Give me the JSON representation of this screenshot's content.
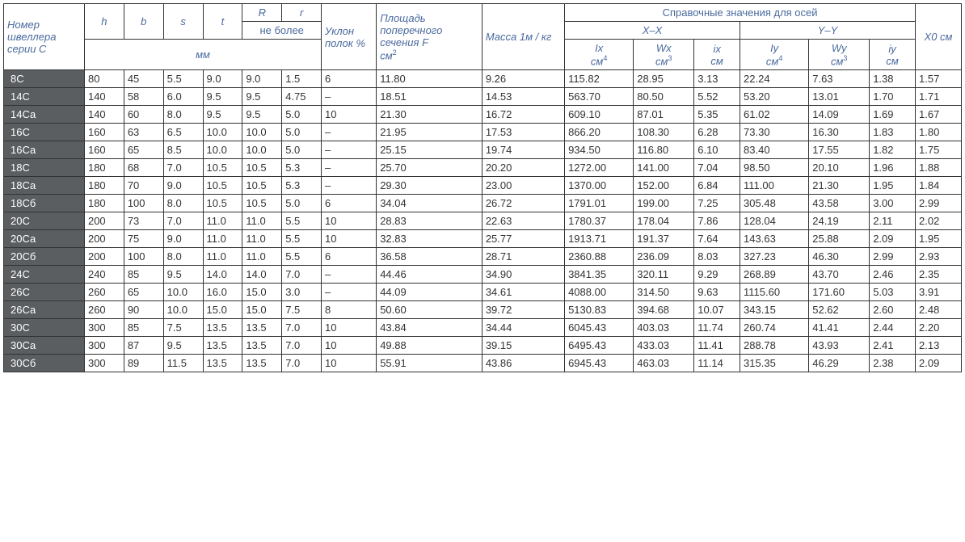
{
  "headers": {
    "col0": "Номер швеллера серии С",
    "h": "h",
    "b": "b",
    "s": "s",
    "t": "t",
    "R": "R",
    "r": "r",
    "not_more": "не более",
    "mm": "мм",
    "slope": "Уклон полок %",
    "area_l1": "Площадь поперечного сечения F",
    "area_unit": "см",
    "area_sup": "2",
    "mass": "Масса 1м / кг",
    "ref_title": "Справочные значения для осей",
    "xx": "X–X",
    "yy": "Y–Y",
    "x0": "X0 см",
    "Ix": "Ix",
    "Ix_u": "см",
    "Ix_s": "4",
    "Wx": "Wx",
    "Wx_u": "см",
    "Wx_s": "3",
    "ix": "ix",
    "ix_u": "см",
    "Iy": "Iy",
    "Iy_u": "см",
    "Iy_s": "4",
    "Wy": "Wy",
    "Wy_u": "см",
    "Wy_s": "3",
    "iy": "iy",
    "iy_u": "см"
  },
  "rows": [
    {
      "n": "8С",
      "h": "80",
      "b": "45",
      "s": "5.5",
      "t": "9.0",
      "R": "9.0",
      "r": "1.5",
      "slope": "6",
      "F": "11.80",
      "m": "9.26",
      "Ix": "115.82",
      "Wx": "28.95",
      "ix": "3.13",
      "Iy": "22.24",
      "Wy": "7.63",
      "iy": "1.38",
      "x0": "1.57"
    },
    {
      "n": "14С",
      "h": "140",
      "b": "58",
      "s": "6.0",
      "t": "9.5",
      "R": "9.5",
      "r": "4.75",
      "slope": "–",
      "F": "18.51",
      "m": "14.53",
      "Ix": "563.70",
      "Wx": "80.50",
      "ix": "5.52",
      "Iy": "53.20",
      "Wy": "13.01",
      "iy": "1.70",
      "x0": "1.71"
    },
    {
      "n": "14Са",
      "h": "140",
      "b": "60",
      "s": "8.0",
      "t": "9.5",
      "R": "9.5",
      "r": "5.0",
      "slope": "10",
      "F": "21.30",
      "m": "16.72",
      "Ix": "609.10",
      "Wx": "87.01",
      "ix": "5.35",
      "Iy": "61.02",
      "Wy": "14.09",
      "iy": "1.69",
      "x0": "1.67"
    },
    {
      "n": "16С",
      "h": "160",
      "b": "63",
      "s": "6.5",
      "t": "10.0",
      "R": "10.0",
      "r": "5.0",
      "slope": "–",
      "F": "21.95",
      "m": "17.53",
      "Ix": "866.20",
      "Wx": "108.30",
      "ix": "6.28",
      "Iy": "73.30",
      "Wy": "16.30",
      "iy": "1.83",
      "x0": "1.80"
    },
    {
      "n": "16Са",
      "h": "160",
      "b": "65",
      "s": "8.5",
      "t": "10.0",
      "R": "10.0",
      "r": "5.0",
      "slope": "–",
      "F": "25.15",
      "m": "19.74",
      "Ix": "934.50",
      "Wx": "116.80",
      "ix": "6.10",
      "Iy": "83.40",
      "Wy": "17.55",
      "iy": "1.82",
      "x0": "1.75"
    },
    {
      "n": "18С",
      "h": "180",
      "b": "68",
      "s": "7.0",
      "t": "10.5",
      "R": "10.5",
      "r": "5.3",
      "slope": "–",
      "F": "25.70",
      "m": "20.20",
      "Ix": "1272.00",
      "Wx": "141.00",
      "ix": "7.04",
      "Iy": "98.50",
      "Wy": "20.10",
      "iy": "1.96",
      "x0": "1.88"
    },
    {
      "n": "18Са",
      "h": "180",
      "b": "70",
      "s": "9.0",
      "t": "10.5",
      "R": "10.5",
      "r": "5.3",
      "slope": "–",
      "F": "29.30",
      "m": "23.00",
      "Ix": "1370.00",
      "Wx": "152.00",
      "ix": "6.84",
      "Iy": "111.00",
      "Wy": "21.30",
      "iy": "1.95",
      "x0": "1.84"
    },
    {
      "n": "18Сб",
      "h": "180",
      "b": "100",
      "s": "8.0",
      "t": "10.5",
      "R": "10.5",
      "r": "5.0",
      "slope": "6",
      "F": "34.04",
      "m": "26.72",
      "Ix": "1791.01",
      "Wx": "199.00",
      "ix": "7.25",
      "Iy": "305.48",
      "Wy": "43.58",
      "iy": "3.00",
      "x0": "2.99"
    },
    {
      "n": "20С",
      "h": "200",
      "b": "73",
      "s": "7.0",
      "t": "11.0",
      "R": "11.0",
      "r": "5.5",
      "slope": "10",
      "F": "28.83",
      "m": "22.63",
      "Ix": "1780.37",
      "Wx": "178.04",
      "ix": "7.86",
      "Iy": "128.04",
      "Wy": "24.19",
      "iy": "2.11",
      "x0": "2.02"
    },
    {
      "n": "20Са",
      "h": "200",
      "b": "75",
      "s": "9.0",
      "t": "11.0",
      "R": "11.0",
      "r": "5.5",
      "slope": "10",
      "F": "32.83",
      "m": "25.77",
      "Ix": "1913.71",
      "Wx": "191.37",
      "ix": "7.64",
      "Iy": "143.63",
      "Wy": "25.88",
      "iy": "2.09",
      "x0": "1.95"
    },
    {
      "n": "20Сб",
      "h": "200",
      "b": "100",
      "s": "8.0",
      "t": "11.0",
      "R": "11.0",
      "r": "5.5",
      "slope": "6",
      "F": "36.58",
      "m": "28.71",
      "Ix": "2360.88",
      "Wx": "236.09",
      "ix": "8.03",
      "Iy": "327.23",
      "Wy": "46.30",
      "iy": "2.99",
      "x0": "2.93"
    },
    {
      "n": "24С",
      "h": "240",
      "b": "85",
      "s": "9.5",
      "t": "14.0",
      "R": "14.0",
      "r": "7.0",
      "slope": "–",
      "F": "44.46",
      "m": "34.90",
      "Ix": "3841.35",
      "Wx": "320.11",
      "ix": "9.29",
      "Iy": "268.89",
      "Wy": "43.70",
      "iy": "2.46",
      "x0": "2.35"
    },
    {
      "n": "26С",
      "h": "260",
      "b": "65",
      "s": "10.0",
      "t": "16.0",
      "R": "15.0",
      "r": "3.0",
      "slope": "–",
      "F": "44.09",
      "m": "34.61",
      "Ix": "4088.00",
      "Wx": "314.50",
      "ix": "9.63",
      "Iy": "1115.60",
      "Wy": "171.60",
      "iy": "5.03",
      "x0": "3.91"
    },
    {
      "n": "26Са",
      "h": "260",
      "b": "90",
      "s": "10.0",
      "t": "15.0",
      "R": "15.0",
      "r": "7.5",
      "slope": "8",
      "F": "50.60",
      "m": "39.72",
      "Ix": "5130.83",
      "Wx": "394.68",
      "ix": "10.07",
      "Iy": "343.15",
      "Wy": "52.62",
      "iy": "2.60",
      "x0": "2.48"
    },
    {
      "n": "30С",
      "h": "300",
      "b": "85",
      "s": "7.5",
      "t": "13.5",
      "R": "13.5",
      "r": "7.0",
      "slope": "10",
      "F": "43.84",
      "m": "34.44",
      "Ix": "6045.43",
      "Wx": "403.03",
      "ix": "11.74",
      "Iy": "260.74",
      "Wy": "41.41",
      "iy": "2.44",
      "x0": "2.20"
    },
    {
      "n": "30Са",
      "h": "300",
      "b": "87",
      "s": "9.5",
      "t": "13.5",
      "R": "13.5",
      "r": "7.0",
      "slope": "10",
      "F": "49.88",
      "m": "39.15",
      "Ix": "6495.43",
      "Wx": "433.03",
      "ix": "11.41",
      "Iy": "288.78",
      "Wy": "43.93",
      "iy": "2.41",
      "x0": "2.13"
    },
    {
      "n": "30Сб",
      "h": "300",
      "b": "89",
      "s": "11.5",
      "t": "13.5",
      "R": "13.5",
      "r": "7.0",
      "slope": "10",
      "F": "55.91",
      "m": "43.86",
      "Ix": "6945.43",
      "Wx": "463.03",
      "ix": "11.14",
      "Iy": "315.35",
      "Wy": "46.29",
      "iy": "2.38",
      "x0": "2.09"
    }
  ],
  "style": {
    "header_color": "#4a6a9e",
    "label_bg": "#5a5e61",
    "border_color": "#333"
  }
}
